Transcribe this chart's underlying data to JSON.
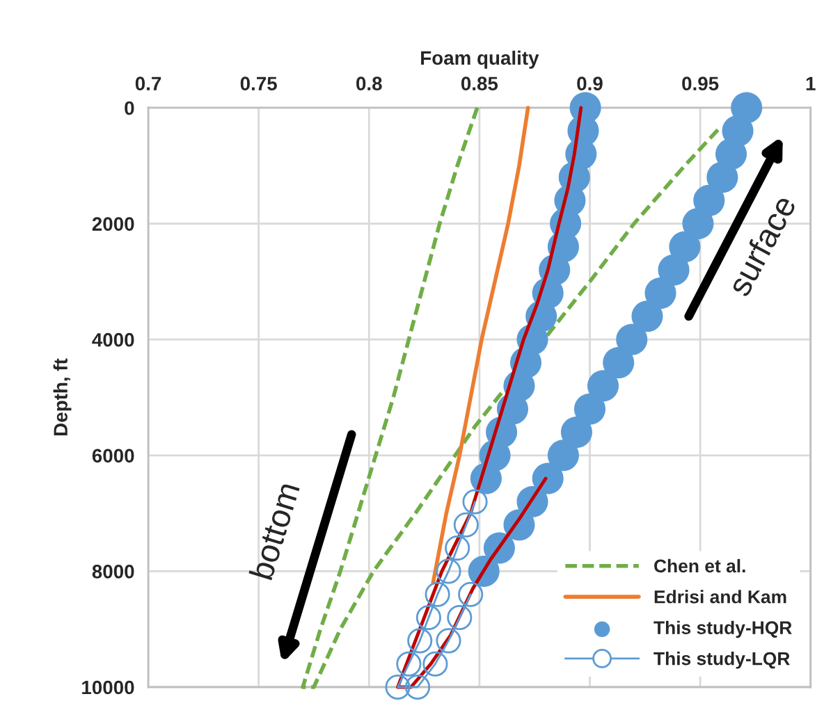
{
  "chart_data": {
    "type": "line",
    "xlabel": "Foam quality",
    "ylabel": "Depth, ft",
    "xlim": [
      0.7,
      1
    ],
    "xticks": [
      0.7,
      0.75,
      0.8,
      0.85,
      0.9,
      0.95,
      1
    ],
    "ylim": [
      10000,
      0
    ],
    "yticks": [
      0,
      2000,
      4000,
      6000,
      8000,
      10000
    ],
    "grid": true,
    "legend": "bottom right",
    "annotations": [
      "surface",
      "bottom"
    ],
    "series": [
      {
        "name": "Chen et al.",
        "line_style": "dashed",
        "color": "#70ad47",
        "x": [
          0.849,
          0.84,
          0.832,
          0.825,
          0.818,
          0.811,
          0.803,
          0.795,
          0.787,
          0.778,
          0.77,
          0.775,
          0.787,
          0.802,
          0.821,
          0.83,
          0.848,
          0.9,
          0.92,
          0.943,
          0.958
        ],
        "values": [
          0,
          1000,
          2000,
          3000,
          4000,
          5000,
          6000,
          7000,
          8000,
          9000,
          10000,
          10000,
          9000,
          8000,
          7000,
          6500,
          5500,
          3000,
          2000,
          1000,
          380
        ]
      },
      {
        "name": "Edrisi and Kam",
        "line_style": "solid",
        "color": "#ed7d31",
        "x": [
          0.872,
          0.868,
          0.863,
          0.857,
          0.851,
          0.846,
          0.841,
          0.835,
          0.83,
          0.829
        ],
        "values": [
          0,
          1000,
          2000,
          3000,
          4000,
          5000,
          6000,
          7000,
          8000,
          8200
        ]
      },
      {
        "name": "This study-HQR",
        "type": "scatter",
        "marker": "circle",
        "color": "#5b9bd5",
        "x": [
          0.898,
          0.897,
          0.896,
          0.893,
          0.891,
          0.889,
          0.888,
          0.884,
          0.881,
          0.878,
          0.874,
          0.871,
          0.868,
          0.865,
          0.86,
          0.857,
          0.853,
          0.971,
          0.967,
          0.964,
          0.96,
          0.954,
          0.949,
          0.943,
          0.938,
          0.932,
          0.926,
          0.919,
          0.913,
          0.906,
          0.9,
          0.894,
          0.888,
          0.881,
          0.874,
          0.868,
          0.859,
          0.852
        ],
        "values": [
          0,
          400,
          800,
          1200,
          1600,
          2000,
          2400,
          2800,
          3200,
          3600,
          4000,
          4400,
          4800,
          5200,
          5600,
          6000,
          6400,
          0,
          400,
          800,
          1200,
          1600,
          2000,
          2400,
          2800,
          3200,
          3600,
          4000,
          4400,
          4800,
          5200,
          5600,
          6000,
          6400,
          6800,
          7200,
          7600,
          8000
        ]
      },
      {
        "name": "This study-LQR",
        "marker": "circle",
        "line_style": "solid",
        "color": "#5b9bd5",
        "x": [
          0.848,
          0.844,
          0.84,
          0.836,
          0.831,
          0.827,
          0.823,
          0.818,
          0.813,
          0.822,
          0.83,
          0.836,
          0.841,
          0.846
        ],
        "values": [
          6800,
          7200,
          7600,
          8000,
          8400,
          8800,
          9200,
          9600,
          10000,
          10000,
          9600,
          9200,
          8800,
          8400
        ]
      },
      {
        "line_style": "solid",
        "color": "#c00000",
        "x": [
          0.896,
          0.893,
          0.89,
          0.886,
          0.881,
          0.876,
          0.87,
          0.862,
          0.854,
          0.846,
          0.833,
          0.823,
          0.813,
          0.819,
          0.828,
          0.837,
          0.847,
          0.855,
          0.868,
          0.88
        ],
        "values": [
          0,
          800,
          1400,
          2000,
          2800,
          3400,
          4000,
          5000,
          6000,
          7000,
          8000,
          9000,
          10000,
          10000,
          9600,
          9100,
          8300,
          7800,
          7100,
          6400
        ]
      }
    ]
  }
}
